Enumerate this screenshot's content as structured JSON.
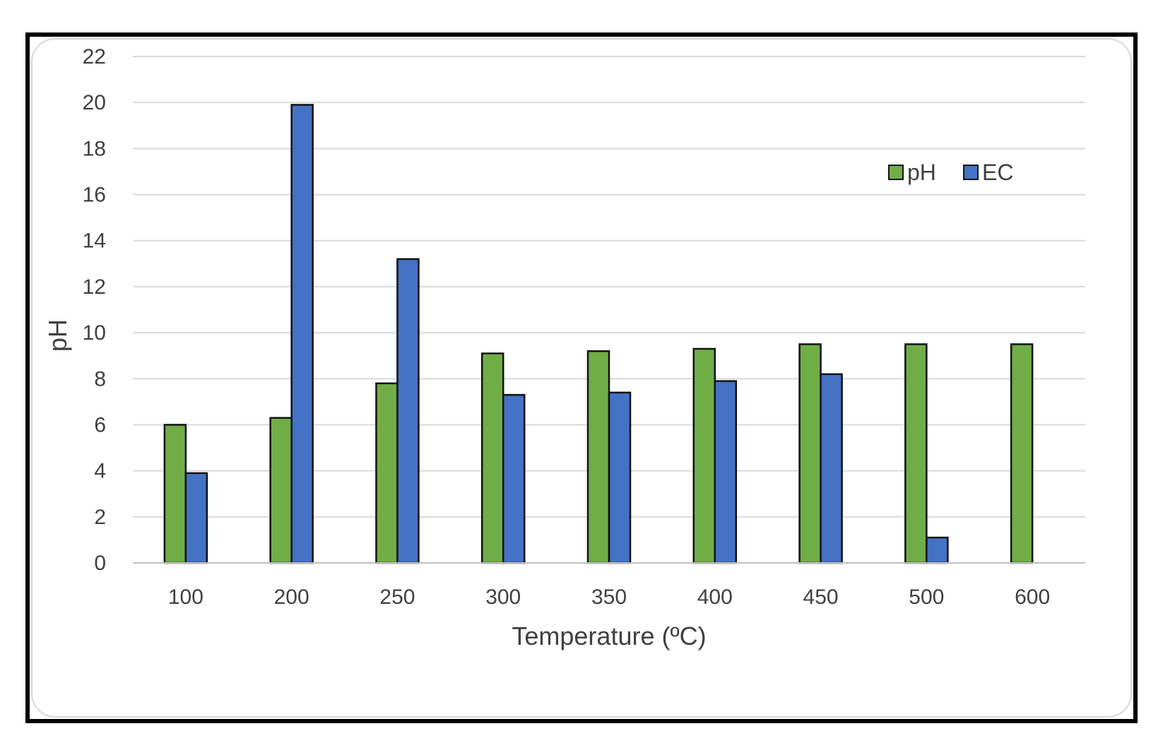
{
  "chart_data": {
    "type": "bar",
    "categories": [
      "100",
      "200",
      "250",
      "300",
      "350",
      "400",
      "450",
      "500",
      "600"
    ],
    "series": [
      {
        "name": "pH",
        "color": "#70ad47",
        "values": [
          6.0,
          6.3,
          7.8,
          9.1,
          9.2,
          9.3,
          9.5,
          9.5,
          9.5
        ]
      },
      {
        "name": "EC",
        "color": "#4472c4",
        "values": [
          3.9,
          19.9,
          13.2,
          7.3,
          7.4,
          7.9,
          8.2,
          1.1,
          null
        ]
      }
    ],
    "title": "",
    "xlabel": "Temperature (ºC)",
    "ylabel": "pH",
    "ylim": [
      0,
      22
    ],
    "yticks": [
      0,
      2,
      4,
      6,
      8,
      10,
      12,
      14,
      16,
      18,
      20,
      22
    ],
    "grid": true,
    "legend_position": "top-right"
  }
}
